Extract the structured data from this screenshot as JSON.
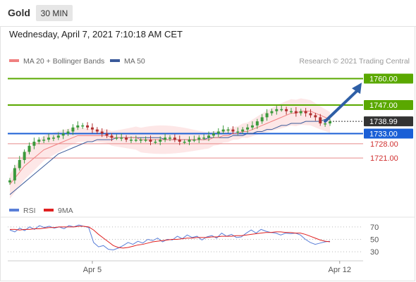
{
  "header": {
    "asset": "Gold",
    "interval": "30 MIN",
    "datetime": "Wednesday, April 7, 2021 7:10:18 AM CET"
  },
  "credit": "Research © 2021 Trading Central",
  "colors": {
    "resistance": "#5aa800",
    "pivot": "#1a5fd6",
    "support": "#e88a8a",
    "price_tag": "#333333",
    "arrow": "#2f5fa6",
    "candle_up": "#3c9a3c",
    "candle_down": "#b03030",
    "ma20": "#f08080",
    "ma50": "#3a5a9a",
    "bands": "#fde4e4",
    "rsi": "#5a7fd8",
    "rsi_ma": "#e02020"
  },
  "chart_data": [
    {
      "type": "line",
      "name": "price",
      "legend": [
        {
          "label": "MA 20 + Bollinger Bands",
          "color": "#f08080"
        },
        {
          "label": "MA 50",
          "color": "#3a5a9a"
        }
      ],
      "ylim": [
        1703,
        1764
      ],
      "x_ticks": [
        {
          "label": "Apr 5",
          "index": 17
        },
        {
          "label": "Apr 12",
          "index": 68
        }
      ],
      "levels": [
        {
          "value": 1760.0,
          "label": "1760.00",
          "kind": "resistance"
        },
        {
          "value": 1747.0,
          "label": "1747.00",
          "kind": "resistance"
        },
        {
          "value": 1733.0,
          "label": "1733.00",
          "kind": "pivot"
        },
        {
          "value": 1728.0,
          "label": "1728.00",
          "kind": "support"
        },
        {
          "value": 1721.0,
          "label": "1721.00",
          "kind": "support"
        }
      ],
      "last_price": {
        "value": 1738.99,
        "label": "1738.99"
      },
      "forecast_arrow": {
        "from_index": 65,
        "from_value": 1739,
        "to_index": 71,
        "to_value": 1758
      },
      "close": [
        1710,
        1716,
        1720,
        1724,
        1727,
        1729,
        1730,
        1730,
        1731,
        1731,
        1732,
        1733,
        1734,
        1736,
        1737,
        1737,
        1736,
        1735,
        1734,
        1733,
        1732,
        1731,
        1731,
        1731,
        1730,
        1730,
        1730,
        1730,
        1730,
        1729,
        1729,
        1730,
        1731,
        1731,
        1730,
        1729,
        1729,
        1730,
        1730,
        1731,
        1731,
        1732,
        1733,
        1734,
        1735,
        1735,
        1734,
        1734,
        1735,
        1736,
        1737,
        1739,
        1741,
        1743,
        1744,
        1745,
        1745,
        1744,
        1744,
        1743,
        1744,
        1743,
        1742,
        1741,
        1738,
        1738,
        1739
      ],
      "ma20": [
        1708,
        1711,
        1714,
        1717,
        1719,
        1721,
        1723,
        1725,
        1726,
        1727,
        1728,
        1729,
        1730,
        1731,
        1732,
        1732,
        1732,
        1732,
        1732,
        1732,
        1732,
        1731,
        1731,
        1731,
        1731,
        1731,
        1731,
        1730,
        1730,
        1730,
        1730,
        1730,
        1730,
        1730,
        1730,
        1730,
        1730,
        1730,
        1730,
        1730,
        1730,
        1730,
        1731,
        1731,
        1732,
        1732,
        1733,
        1733,
        1734,
        1734,
        1735,
        1736,
        1737,
        1738,
        1739,
        1740,
        1741,
        1742,
        1743,
        1743,
        1744,
        1744,
        1744,
        1743,
        1742,
        1741,
        1740
      ],
      "ma50": [
        1703,
        1705,
        1707,
        1709,
        1711,
        1713,
        1715,
        1717,
        1719,
        1721,
        1723,
        1724,
        1725,
        1726,
        1727,
        1728,
        1729,
        1729,
        1730,
        1730,
        1730,
        1730,
        1731,
        1731,
        1731,
        1731,
        1731,
        1731,
        1731,
        1731,
        1731,
        1731,
        1730,
        1730,
        1730,
        1730,
        1730,
        1730,
        1730,
        1730,
        1730,
        1731,
        1731,
        1731,
        1731,
        1731,
        1732,
        1732,
        1732,
        1733,
        1733,
        1734,
        1734,
        1735,
        1735,
        1736,
        1737,
        1737,
        1738,
        1738,
        1738,
        1739,
        1739,
        1739,
        1739,
        1740,
        1740
      ]
    },
    {
      "type": "line",
      "name": "rsi",
      "legend": [
        {
          "label": "RSI",
          "color": "#5a7fd8"
        },
        {
          "label": "9MA",
          "color": "#e02020"
        }
      ],
      "ylim": [
        20,
        80
      ],
      "y_ticks": [
        {
          "value": 70,
          "label": "70"
        },
        {
          "value": 50,
          "label": "50"
        },
        {
          "value": 30,
          "label": "30"
        }
      ],
      "rsi": [
        65,
        62,
        68,
        64,
        70,
        66,
        72,
        69,
        71,
        68,
        70,
        67,
        72,
        70,
        73,
        71,
        69,
        45,
        38,
        40,
        34,
        33,
        36,
        40,
        45,
        42,
        47,
        44,
        50,
        48,
        52,
        46,
        50,
        49,
        55,
        51,
        57,
        53,
        55,
        49,
        54,
        56,
        52,
        60,
        55,
        58,
        53,
        54,
        60,
        65,
        60,
        66,
        63,
        61,
        60,
        57,
        60,
        59,
        60,
        57,
        50,
        45,
        42,
        44,
        46,
        47
      ],
      "rsi_ma": [
        66,
        66,
        65,
        66,
        66,
        67,
        67,
        68,
        69,
        69,
        70,
        70,
        70,
        70,
        71,
        71,
        70,
        65,
        58,
        52,
        46,
        40,
        37,
        36,
        37,
        39,
        41,
        42,
        44,
        46,
        47,
        48,
        49,
        50,
        50,
        51,
        52,
        52,
        53,
        53,
        53,
        54,
        54,
        55,
        55,
        55,
        56,
        56,
        57,
        58,
        59,
        60,
        61,
        61,
        62,
        62,
        61,
        61,
        60,
        60,
        58,
        55,
        52,
        49,
        47,
        46
      ]
    }
  ]
}
